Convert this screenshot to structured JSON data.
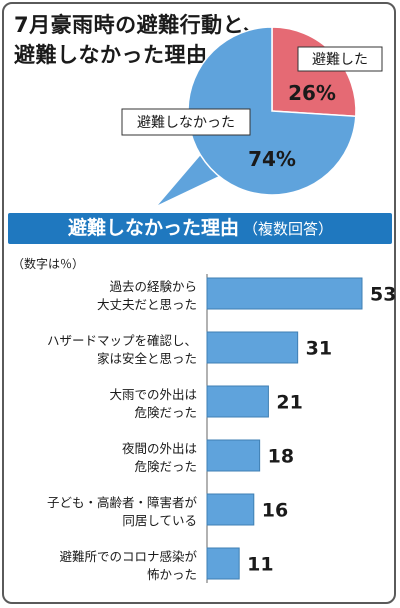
{
  "title": [
    "7月豪雨時の避難行動と、",
    "避難しなかった理由"
  ],
  "section_title": "避難しなかった理由",
  "section_subtitle": "（複数回答）",
  "unit_note": "（数字は％）",
  "colors": {
    "pie_main": "#5fa3dc",
    "pie_highlight": "#e56a74",
    "bar": "#5fa3dc",
    "header": "#1f78bf"
  },
  "chart_data": [
    {
      "type": "pie",
      "slices": [
        {
          "label": "避難した",
          "value": 26,
          "value_label": "26%"
        },
        {
          "label": "避難しなかった",
          "value": 74,
          "value_label": "74%"
        }
      ]
    },
    {
      "type": "bar",
      "orientation": "horizontal",
      "categories": [
        [
          "過去の経験から",
          "大丈夫だと思った"
        ],
        [
          "ハザードマップを確認し、",
          "家は安全と思った"
        ],
        [
          "大雨での外出は",
          "危険だった"
        ],
        [
          "夜間の外出は",
          "危険だった"
        ],
        [
          "子ども・高齢者・障害者が",
          "同居している"
        ],
        [
          "避難所でのコロナ感染が",
          "怖かった"
        ]
      ],
      "values": [
        53,
        31,
        21,
        18,
        16,
        11
      ],
      "value_labels": [
        "53",
        "31",
        "21",
        "18",
        "16",
        "11"
      ]
    }
  ]
}
